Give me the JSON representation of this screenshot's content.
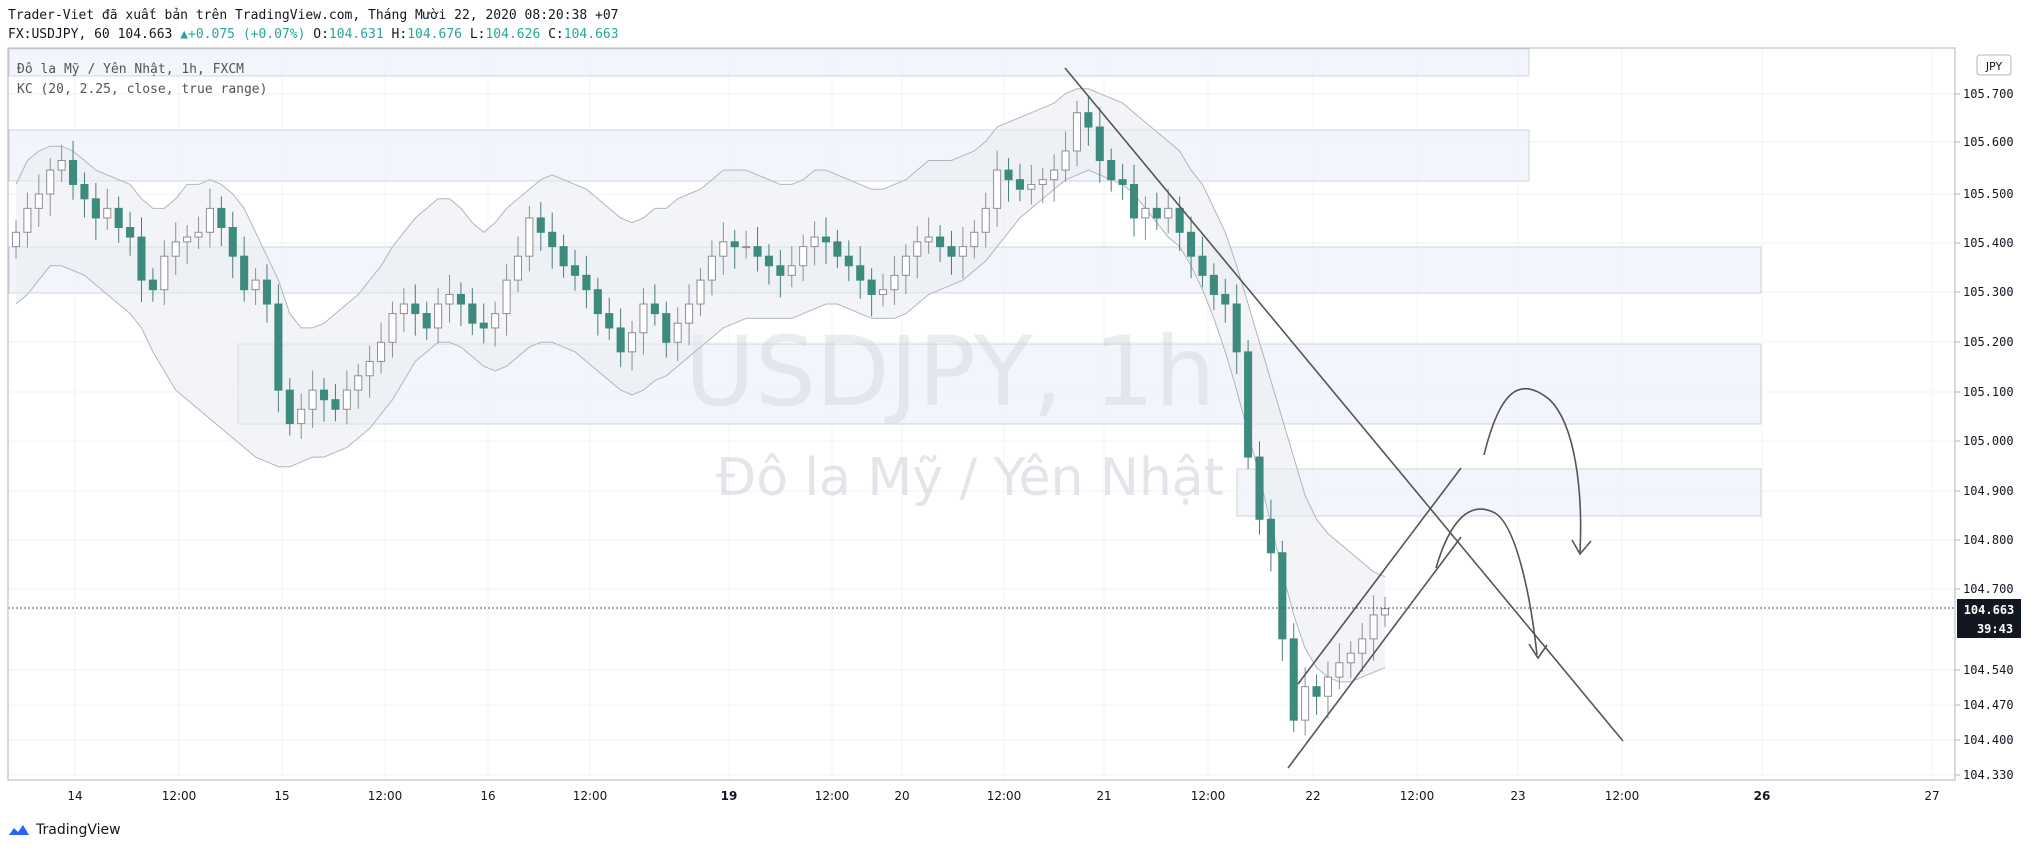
{
  "header": {
    "published": "Trader-Viet đã xuất bản trên TradingView.com, Tháng Mười 22, 2020 08:20:38 +07",
    "symbol": "FX:USDJPY, 60",
    "last": "104.663",
    "change": "+0.075 (+0.07%)",
    "o_label": "O:",
    "o": "104.631",
    "h_label": "H:",
    "h": "104.676",
    "l_label": "L:",
    "l": "104.626",
    "c_label": "C:",
    "c": "104.663"
  },
  "legend": {
    "title": "Đô la Mỹ / Yên Nhật, 1h, FXCM",
    "indicator": "KC (20, 2.25, close, true range)"
  },
  "watermark": {
    "symbol": "USDJPY, 1h",
    "name": "Đô la Mỹ / Yên Nhật"
  },
  "currency_badge": "JPY",
  "price_tag": "104.663",
  "countdown_tag": "39:43",
  "footer": {
    "brand": "TradingView"
  },
  "colors": {
    "up": "#26a69a",
    "down": "#26a69a",
    "up_body": "#ffffff",
    "up_wick": "#8e8f96",
    "channel": "#b2b5be",
    "zone": "#d1d4dc",
    "drawing": "#555555"
  },
  "chart_data": {
    "type": "candlestick",
    "title": "Đô la Mỹ / Yên Nhật, 1h, FXCM",
    "indicator": "KC (20, 2.25, close, true range)",
    "y_ticks": [
      "105.700",
      "105.600",
      "105.500",
      "105.400",
      "105.300",
      "105.200",
      "105.100",
      "105.000",
      "104.900",
      "104.800",
      "104.700",
      "104.540",
      "104.470",
      "104.400",
      "104.330"
    ],
    "x_ticks": [
      "14",
      "12:00",
      "15",
      "12:00",
      "16",
      "12:00",
      "19",
      "12:00",
      "20",
      "12:00",
      "21",
      "12:00",
      "22",
      "12:00",
      "23",
      "12:00",
      "26",
      "27"
    ],
    "ylim": [
      104.33,
      105.76
    ],
    "last_price": 104.663,
    "grid": true,
    "candle_closes": [
      105.45,
      105.5,
      105.53,
      105.58,
      105.6,
      105.55,
      105.52,
      105.48,
      105.5,
      105.46,
      105.44,
      105.35,
      105.33,
      105.4,
      105.43,
      105.44,
      105.45,
      105.5,
      105.46,
      105.4,
      105.33,
      105.35,
      105.3,
      105.12,
      105.05,
      105.08,
      105.12,
      105.1,
      105.08,
      105.12,
      105.15,
      105.18,
      105.22,
      105.28,
      105.3,
      105.28,
      105.25,
      105.3,
      105.32,
      105.3,
      105.26,
      105.25,
      105.28,
      105.35,
      105.4,
      105.48,
      105.45,
      105.42,
      105.38,
      105.36,
      105.33,
      105.28,
      105.25,
      105.2,
      105.24,
      105.3,
      105.28,
      105.22,
      105.26,
      105.3,
      105.35,
      105.4,
      105.43,
      105.42,
      105.42,
      105.4,
      105.38,
      105.36,
      105.38,
      105.42,
      105.44,
      105.43,
      105.4,
      105.38,
      105.35,
      105.32,
      105.33,
      105.36,
      105.4,
      105.43,
      105.44,
      105.42,
      105.4,
      105.42,
      105.45,
      105.5,
      105.58,
      105.56,
      105.54,
      105.55,
      105.56,
      105.58,
      105.62,
      105.7,
      105.67,
      105.6,
      105.56,
      105.55,
      105.48,
      105.5,
      105.48,
      105.5,
      105.45,
      105.4,
      105.36,
      105.32,
      105.3,
      105.2,
      104.98,
      104.85,
      104.78,
      104.6,
      104.43,
      104.5,
      104.48,
      104.52,
      104.55,
      104.57,
      104.6,
      104.65,
      104.663
    ],
    "keltner_upper": [
      105.55,
      105.6,
      105.62,
      105.63,
      105.63,
      105.62,
      105.6,
      105.58,
      105.57,
      105.56,
      105.55,
      105.52,
      105.5,
      105.5,
      105.52,
      105.55,
      105.55,
      105.56,
      105.55,
      105.53,
      105.5,
      105.45,
      105.4,
      105.35,
      105.28,
      105.25,
      105.25,
      105.26,
      105.28,
      105.3,
      105.32,
      105.35,
      105.38,
      105.42,
      105.45,
      105.48,
      105.5,
      105.52,
      105.52,
      105.5,
      105.47,
      105.45,
      105.47,
      105.5,
      105.52,
      105.54,
      105.56,
      105.57,
      105.56,
      105.55,
      105.54,
      105.52,
      105.5,
      105.48,
      105.47,
      105.48,
      105.5,
      105.5,
      105.52,
      105.53,
      105.54,
      105.56,
      105.58,
      105.58,
      105.58,
      105.57,
      105.56,
      105.55,
      105.55,
      105.56,
      105.58,
      105.58,
      105.57,
      105.56,
      105.55,
      105.54,
      105.54,
      105.55,
      105.56,
      105.58,
      105.6,
      105.6,
      105.6,
      105.61,
      105.62,
      105.64,
      105.67,
      105.68,
      105.69,
      105.7,
      105.71,
      105.72,
      105.74,
      105.75,
      105.75,
      105.74,
      105.73,
      105.72,
      105.7,
      105.68,
      105.66,
      105.64,
      105.62,
      105.58,
      105.55,
      105.5,
      105.45,
      105.38,
      105.3,
      105.22,
      105.14,
      105.06,
      104.98,
      104.9,
      104.85,
      104.82,
      104.8,
      104.78,
      104.76,
      104.74,
      104.73
    ],
    "keltner_lower": [
      105.3,
      105.32,
      105.35,
      105.38,
      105.38,
      105.37,
      105.36,
      105.34,
      105.32,
      105.3,
      105.28,
      105.25,
      105.2,
      105.16,
      105.12,
      105.1,
      105.08,
      105.06,
      105.04,
      105.02,
      105.0,
      104.98,
      104.97,
      104.96,
      104.96,
      104.97,
      104.98,
      104.98,
      104.99,
      105.0,
      105.02,
      105.04,
      105.07,
      105.1,
      105.14,
      105.18,
      105.2,
      105.22,
      105.22,
      105.21,
      105.19,
      105.17,
      105.16,
      105.17,
      105.19,
      105.21,
      105.22,
      105.22,
      105.21,
      105.2,
      105.18,
      105.16,
      105.14,
      105.12,
      105.11,
      105.12,
      105.14,
      105.15,
      105.17,
      105.19,
      105.21,
      105.23,
      105.25,
      105.26,
      105.27,
      105.27,
      105.27,
      105.27,
      105.27,
      105.28,
      105.29,
      105.3,
      105.3,
      105.29,
      105.28,
      105.27,
      105.27,
      105.27,
      105.28,
      105.3,
      105.32,
      105.33,
      105.34,
      105.35,
      105.37,
      105.39,
      105.42,
      105.45,
      105.48,
      105.5,
      105.52,
      105.54,
      105.56,
      105.57,
      105.58,
      105.57,
      105.56,
      105.55,
      105.53,
      105.5,
      105.47,
      105.44,
      105.42,
      105.38,
      105.33,
      105.27,
      105.2,
      105.12,
      105.03,
      104.94,
      104.84,
      104.74,
      104.65,
      104.58,
      104.54,
      104.52,
      104.51,
      104.51,
      104.52,
      104.53,
      104.54
    ]
  }
}
